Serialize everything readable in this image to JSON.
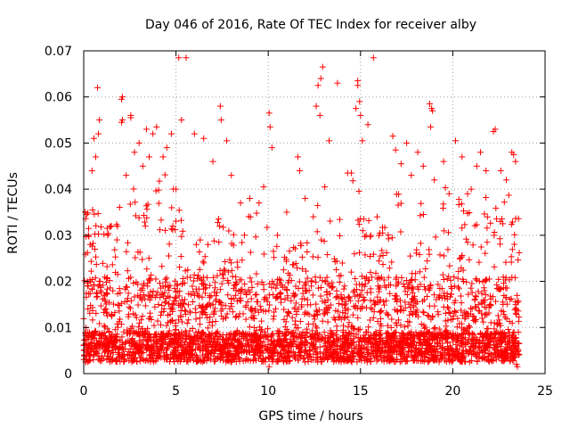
{
  "chart_data": {
    "type": "scatter",
    "title": "Day 046 of 2016, Rate Of TEC Index for receiver alby",
    "xlabel": "GPS time / hours",
    "ylabel": "ROTI / TECUs",
    "xlim": [
      0,
      25
    ],
    "ylim": [
      0,
      0.07
    ],
    "xticks": [
      0,
      5,
      10,
      15,
      20,
      25
    ],
    "xtick_labels": [
      "0",
      "5",
      "10",
      "15",
      "20",
      "25"
    ],
    "yticks": [
      0,
      0.01,
      0.02,
      0.03,
      0.04,
      0.05,
      0.06,
      0.07
    ],
    "ytick_labels": [
      "0",
      "0.01",
      "0.02",
      "0.03",
      "0.04",
      "0.05",
      "0.06",
      "0.07"
    ],
    "grid": true,
    "marker": "+",
    "color": "#ff0000",
    "time_span": [
      0,
      23.6
    ],
    "series": [
      {
        "name": "ROTI",
        "points": [
          [
            0.15,
            0.0345
          ],
          [
            0.25,
            0.03
          ],
          [
            0.35,
            0.028
          ],
          [
            0.45,
            0.044
          ],
          [
            0.55,
            0.051
          ],
          [
            0.65,
            0.047
          ],
          [
            0.75,
            0.062
          ],
          [
            0.85,
            0.055
          ],
          [
            0.8,
            0.052
          ],
          [
            1.3,
            0.03
          ],
          [
            1.5,
            0.032
          ],
          [
            1.8,
            0.029
          ],
          [
            2.05,
            0.0595
          ],
          [
            2.1,
            0.06
          ],
          [
            2.05,
            0.0545
          ],
          [
            2.1,
            0.055
          ],
          [
            2.3,
            0.043
          ],
          [
            2.55,
            0.056
          ],
          [
            2.55,
            0.0555
          ],
          [
            2.75,
            0.048
          ],
          [
            3.0,
            0.05
          ],
          [
            3.2,
            0.045
          ],
          [
            3.4,
            0.053
          ],
          [
            3.55,
            0.047
          ],
          [
            3.75,
            0.052
          ],
          [
            3.95,
            0.0535
          ],
          [
            4.3,
            0.047
          ],
          [
            4.5,
            0.049
          ],
          [
            4.75,
            0.052
          ],
          [
            5.0,
            0.04
          ],
          [
            5.15,
            0.0685
          ],
          [
            5.3,
            0.055
          ],
          [
            5.55,
            0.0685
          ],
          [
            6.0,
            0.052
          ],
          [
            6.5,
            0.051
          ],
          [
            7.0,
            0.046
          ],
          [
            7.4,
            0.058
          ],
          [
            7.45,
            0.055
          ],
          [
            7.75,
            0.0505
          ],
          [
            8.0,
            0.043
          ],
          [
            8.5,
            0.037
          ],
          [
            9.0,
            0.038
          ],
          [
            9.5,
            0.037
          ],
          [
            9.75,
            0.0405
          ],
          [
            10.05,
            0.0565
          ],
          [
            10.1,
            0.0535
          ],
          [
            10.2,
            0.049
          ],
          [
            10.5,
            0.03
          ],
          [
            11.0,
            0.035
          ],
          [
            11.6,
            0.047
          ],
          [
            11.7,
            0.044
          ],
          [
            12.0,
            0.038
          ],
          [
            12.6,
            0.058
          ],
          [
            12.7,
            0.0625
          ],
          [
            12.85,
            0.064
          ],
          [
            12.95,
            0.0665
          ],
          [
            12.8,
            0.056
          ],
          [
            13.3,
            0.0505
          ],
          [
            13.75,
            0.063
          ],
          [
            14.3,
            0.0435
          ],
          [
            14.5,
            0.0435
          ],
          [
            14.75,
            0.0575
          ],
          [
            14.85,
            0.0625
          ],
          [
            14.85,
            0.0635
          ],
          [
            14.95,
            0.059
          ],
          [
            15.0,
            0.056
          ],
          [
            15.1,
            0.0505
          ],
          [
            15.4,
            0.054
          ],
          [
            15.7,
            0.0685
          ],
          [
            15.9,
            0.034
          ],
          [
            16.2,
            0.0305
          ],
          [
            16.75,
            0.0515
          ],
          [
            16.9,
            0.0485
          ],
          [
            17.2,
            0.0455
          ],
          [
            17.5,
            0.05
          ],
          [
            17.75,
            0.043
          ],
          [
            18.1,
            0.048
          ],
          [
            18.4,
            0.045
          ],
          [
            18.75,
            0.0585
          ],
          [
            18.85,
            0.0575
          ],
          [
            18.9,
            0.057
          ],
          [
            18.8,
            0.0535
          ],
          [
            19.0,
            0.042
          ],
          [
            19.5,
            0.046
          ],
          [
            19.8,
            0.039
          ],
          [
            20.15,
            0.0505
          ],
          [
            20.5,
            0.047
          ],
          [
            20.8,
            0.039
          ],
          [
            21.0,
            0.04
          ],
          [
            21.3,
            0.045
          ],
          [
            21.5,
            0.048
          ],
          [
            21.8,
            0.044
          ],
          [
            22.2,
            0.0525
          ],
          [
            22.3,
            0.053
          ],
          [
            22.6,
            0.044
          ],
          [
            22.9,
            0.042
          ],
          [
            23.2,
            0.048
          ],
          [
            23.3,
            0.0475
          ],
          [
            23.4,
            0.046
          ],
          [
            23.45,
            0.002
          ],
          [
            23.5,
            0.0015
          ],
          [
            10.05,
            0.0015
          ],
          [
            0.35,
            0.003
          ]
        ],
        "synthetic_bulk": {
          "count": 3600,
          "x_range": [
            0,
            23.6
          ],
          "baseline_min": 0.0025,
          "baseline_max": 0.009,
          "spike_envelope_hours": [
            [
              0.5,
              0.036
            ],
            [
              1.0,
              0.034
            ],
            [
              1.5,
              0.033
            ],
            [
              2.0,
              0.038
            ],
            [
              2.5,
              0.045
            ],
            [
              3.0,
              0.037
            ],
            [
              3.5,
              0.042
            ],
            [
              4.0,
              0.046
            ],
            [
              4.5,
              0.043
            ],
            [
              5.0,
              0.04
            ],
            [
              5.5,
              0.033
            ],
            [
              6.0,
              0.031
            ],
            [
              6.5,
              0.028
            ],
            [
              7.0,
              0.035
            ],
            [
              7.5,
              0.033
            ],
            [
              8.0,
              0.031
            ],
            [
              8.5,
              0.036
            ],
            [
              9.0,
              0.036
            ],
            [
              9.5,
              0.039
            ],
            [
              10.0,
              0.036
            ],
            [
              10.5,
              0.027
            ],
            [
              11.0,
              0.028
            ],
            [
              11.5,
              0.029
            ],
            [
              12.0,
              0.032
            ],
            [
              12.5,
              0.036
            ],
            [
              13.0,
              0.043
            ],
            [
              13.5,
              0.031
            ],
            [
              14.0,
              0.035
            ],
            [
              14.5,
              0.043
            ],
            [
              15.0,
              0.04
            ],
            [
              15.5,
              0.033
            ],
            [
              16.0,
              0.031
            ],
            [
              16.5,
              0.034
            ],
            [
              17.0,
              0.04
            ],
            [
              17.5,
              0.035
            ],
            [
              18.0,
              0.034
            ],
            [
              18.5,
              0.042
            ],
            [
              19.0,
              0.038
            ],
            [
              19.5,
              0.042
            ],
            [
              20.0,
              0.035
            ],
            [
              20.5,
              0.04
            ],
            [
              21.0,
              0.038
            ],
            [
              21.5,
              0.036
            ],
            [
              22.0,
              0.041
            ],
            [
              22.5,
              0.037
            ],
            [
              23.0,
              0.039
            ],
            [
              23.5,
              0.035
            ]
          ]
        }
      }
    ]
  }
}
